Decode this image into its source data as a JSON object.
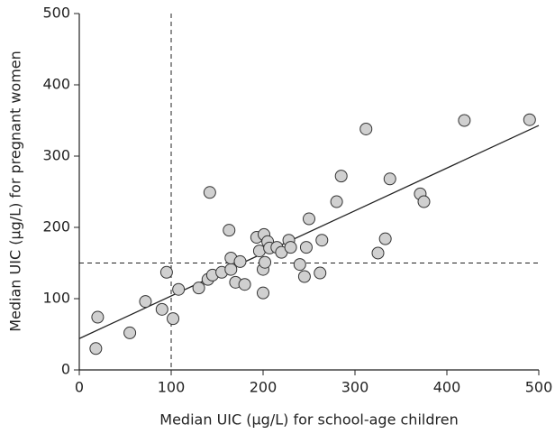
{
  "chart_data": {
    "type": "scatter",
    "x_label": "Median UIC (μg/L) for school-age children",
    "y_label": "Median UIC (μg/L) for pregnant women",
    "x": [
      18,
      20,
      55,
      72,
      90,
      95,
      102,
      108,
      130,
      140,
      145,
      142,
      155,
      163,
      165,
      165,
      170,
      175,
      180,
      193,
      196,
      200,
      200,
      201,
      202,
      205,
      207,
      215,
      220,
      228,
      230,
      240,
      245,
      247,
      250,
      262,
      264,
      280,
      285,
      312,
      325,
      333,
      338,
      371,
      375,
      419,
      490
    ],
    "values": [
      30,
      74,
      52,
      96,
      85,
      137,
      72,
      113,
      115,
      127,
      133,
      249,
      137,
      196,
      141,
      157,
      123,
      152,
      120,
      186,
      167,
      108,
      141,
      190,
      151,
      180,
      171,
      172,
      165,
      182,
      172,
      148,
      131,
      172,
      212,
      136,
      182,
      236,
      272,
      338,
      164,
      184,
      268,
      247,
      236,
      350,
      351
    ],
    "color": "#d0d0d0",
    "xlim": [
      0,
      500
    ],
    "xticks": [
      0,
      100,
      200,
      300,
      400,
      500
    ],
    "ylim": [
      0,
      500
    ],
    "yticks": [
      0,
      100,
      200,
      300,
      400,
      500
    ],
    "trend_line": {
      "x": [
        0,
        500
      ],
      "y": [
        44,
        343
      ]
    },
    "reference_lines": {
      "x": 100,
      "y": 150
    }
  }
}
